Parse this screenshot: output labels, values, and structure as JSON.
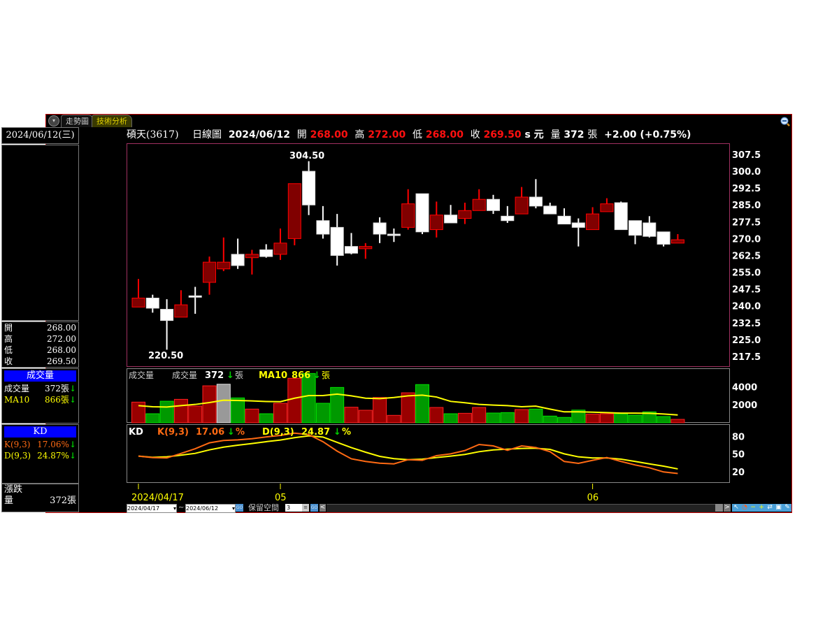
{
  "tabs": [
    {
      "label": "走勢圖",
      "active": false
    },
    {
      "label": "技術分析",
      "active": true
    }
  ],
  "left_panel": {
    "date": "2024/06/12(三)",
    "ohlc": [
      {
        "label": "開",
        "value": "268.00"
      },
      {
        "label": "高",
        "value": "272.00"
      },
      {
        "label": "低",
        "value": "268.00"
      },
      {
        "label": "收",
        "value": "269.50"
      }
    ],
    "volume": {
      "title": "成交量",
      "rows": [
        {
          "label": "成交量",
          "value": "372張",
          "trend": "down"
        },
        {
          "label": "MA10",
          "value": "866張",
          "trend": "down"
        }
      ]
    },
    "kd": {
      "title": "KD",
      "rows": [
        {
          "label": "K(9,3)",
          "value": "17.06%",
          "trend": "down"
        },
        {
          "label": "D(9,3)",
          "value": "24.87%",
          "trend": "down"
        }
      ]
    },
    "change": {
      "title": "漲跌",
      "vol_label": "量",
      "vol_value": "372張"
    }
  },
  "header": {
    "stock": "碩天(3617)",
    "chart_type": "日線圖",
    "date": "2024/06/12",
    "open_label": "開",
    "open": "268.00",
    "high_label": "高",
    "high": "272.00",
    "low_label": "低",
    "low": "268.00",
    "close_label": "收",
    "close": "269.50",
    "unit": "s 元",
    "vol_label": "量",
    "vol": "372",
    "vol_unit": "張",
    "change": "+2.00 (+0.75%)"
  },
  "colors": {
    "up": "#ff0000",
    "up_body": "#800000",
    "down": "#ffffff",
    "vol_up": "#990000",
    "vol_down": "#009900",
    "ma10": "#ffff00",
    "k": "#ff6a13",
    "d": "#ffff00",
    "frame": "#c00000"
  },
  "chart_data": [
    {
      "type": "candlestick",
      "yaxis_ticks": [
        "307.5",
        "300.0",
        "292.5",
        "285.0",
        "277.5",
        "270.0",
        "262.5",
        "255.0",
        "247.5",
        "240.0",
        "232.5",
        "225.0",
        "217.5"
      ],
      "ylim": [
        217.5,
        307.5
      ],
      "high_label": "304.50",
      "low_label": "220.50",
      "x_ticks": [
        {
          "index": 0,
          "label": "2024/04/17"
        },
        {
          "index": 10,
          "label": "05"
        },
        {
          "index": 32,
          "label": "06"
        }
      ],
      "ohlc": [
        [
          239.5,
          252,
          239.5,
          243.5
        ],
        [
          243.5,
          245,
          237,
          239
        ],
        [
          238.5,
          243,
          220.5,
          233.5
        ],
        [
          235,
          247,
          235,
          240.5
        ],
        [
          244.5,
          248.5,
          236.5,
          244.5
        ],
        [
          250.5,
          262,
          245,
          259.5
        ],
        [
          256.5,
          270.5,
          255.5,
          259.5
        ],
        [
          263,
          270,
          256.5,
          258
        ],
        [
          261.5,
          265,
          254,
          263
        ],
        [
          265,
          267.5,
          261.5,
          262
        ],
        [
          263,
          274.5,
          260.5,
          268
        ],
        [
          270,
          294.5,
          267,
          294.5
        ],
        [
          300,
          304.5,
          280.5,
          285
        ],
        [
          278,
          284.5,
          270,
          272
        ],
        [
          275,
          281,
          258,
          262.5
        ],
        [
          266.5,
          272.5,
          263,
          263.5
        ],
        [
          265.5,
          268,
          261,
          266.5
        ],
        [
          277,
          279.5,
          268,
          272
        ],
        [
          272,
          274.5,
          268.5,
          272
        ],
        [
          275,
          292,
          274,
          285.5
        ],
        [
          290,
          290,
          272,
          273
        ],
        [
          274,
          286.5,
          270.5,
          280.5
        ],
        [
          280.5,
          285,
          277,
          277
        ],
        [
          279,
          286,
          276.5,
          282.5
        ],
        [
          282.5,
          292,
          282.5,
          287.5
        ],
        [
          287.5,
          289.5,
          281,
          282.5
        ],
        [
          280,
          284.5,
          277,
          278
        ],
        [
          281,
          293,
          281,
          288.5
        ],
        [
          288.5,
          296.5,
          283.5,
          284.5
        ],
        [
          284.5,
          286,
          281,
          281
        ],
        [
          280,
          283.5,
          276.5,
          276.5
        ],
        [
          277,
          279,
          266.5,
          275
        ],
        [
          274,
          284,
          274,
          281
        ],
        [
          282,
          288,
          282,
          285.5
        ],
        [
          286,
          286.5,
          274,
          274
        ],
        [
          278,
          278,
          267.5,
          271.5
        ],
        [
          277,
          280,
          270.5,
          271
        ],
        [
          273,
          273,
          266.5,
          267.5
        ],
        [
          268,
          272,
          268,
          269.5
        ]
      ]
    },
    {
      "type": "bar",
      "title": "成交量",
      "label": "成交量",
      "value": "372",
      "unit": "張",
      "ma_label": "MA10",
      "ma_value": "866",
      "yaxis_ticks": [
        "4000",
        "2000"
      ],
      "ylim": [
        0,
        6000
      ],
      "values": [
        2300,
        1000,
        2400,
        2610,
        1860,
        4120,
        4300,
        2770,
        1520,
        1000,
        2170,
        4960,
        5500,
        2170,
        3940,
        1730,
        1390,
        2820,
        820,
        3340,
        4260,
        1700,
        1000,
        1050,
        1700,
        1080,
        1130,
        1470,
        1520,
        740,
        590,
        1410,
        950,
        1000,
        1000,
        840,
        1210,
        690,
        372
      ],
      "colors": [
        "up",
        "down",
        "down",
        "up",
        "up",
        "up",
        "highlight",
        "down",
        "up",
        "down",
        "up",
        "up",
        "down",
        "down",
        "down",
        "up",
        "up",
        "up",
        "up",
        "up",
        "down",
        "up",
        "down",
        "up",
        "up",
        "down",
        "down",
        "up",
        "down",
        "down",
        "down",
        "down",
        "up",
        "up",
        "down",
        "down",
        "down",
        "down",
        "up"
      ],
      "ma10": [
        1910,
        1780,
        1750,
        1910,
        2040,
        2250,
        2510,
        2480,
        2430,
        2370,
        2350,
        2740,
        3030,
        3030,
        3200,
        3000,
        2740,
        2690,
        2820,
        3000,
        3080,
        2870,
        2380,
        2230,
        2040,
        1970,
        1910,
        1780,
        1850,
        1520,
        1210,
        1210,
        1180,
        1130,
        1070,
        1070,
        1050,
        970,
        866
      ]
    },
    {
      "type": "line",
      "title": "KD",
      "k_label": "K(9,3)",
      "k_value": "17.06",
      "d_label": "D(9,3)",
      "d_value": "24.87",
      "unit": "%",
      "yaxis_ticks": [
        "80",
        "50",
        "20"
      ],
      "series": [
        {
          "name": "K(9,3)",
          "values": [
            46.5,
            44,
            43.4,
            51,
            59,
            69,
            73,
            74,
            76,
            79,
            81.6,
            85.5,
            83,
            71,
            55,
            42,
            37.5,
            34.6,
            33.4,
            40.5,
            39.4,
            47.3,
            50.4,
            56,
            66.2,
            63.8,
            56.4,
            63.8,
            61.1,
            54,
            37.5,
            34.3,
            39.4,
            44.1,
            37.5,
            31.5,
            26.8,
            19.7,
            17.06
          ]
        },
        {
          "name": "D(9,3)",
          "values": [
            46.5,
            44.5,
            45.3,
            48.1,
            51.2,
            57.1,
            61.8,
            65,
            67.8,
            71,
            73.7,
            77.7,
            80.8,
            78.8,
            69.8,
            61,
            53.2,
            46.1,
            42.2,
            40.5,
            41.4,
            44.1,
            46.5,
            49.3,
            54,
            57.1,
            58.3,
            59.5,
            59.9,
            57.9,
            50.4,
            45.3,
            43.4,
            43.4,
            41.4,
            37.5,
            33.4,
            29.5,
            24.87
          ]
        }
      ]
    }
  ],
  "toolbar": {
    "start_date": "2024/04/17",
    "tilde": "~",
    "end_date": "2024/06/12",
    "go": "GO",
    "reserve_label": "保留空間",
    "reserve_value": "3",
    "prev": "<",
    "next": ">"
  }
}
